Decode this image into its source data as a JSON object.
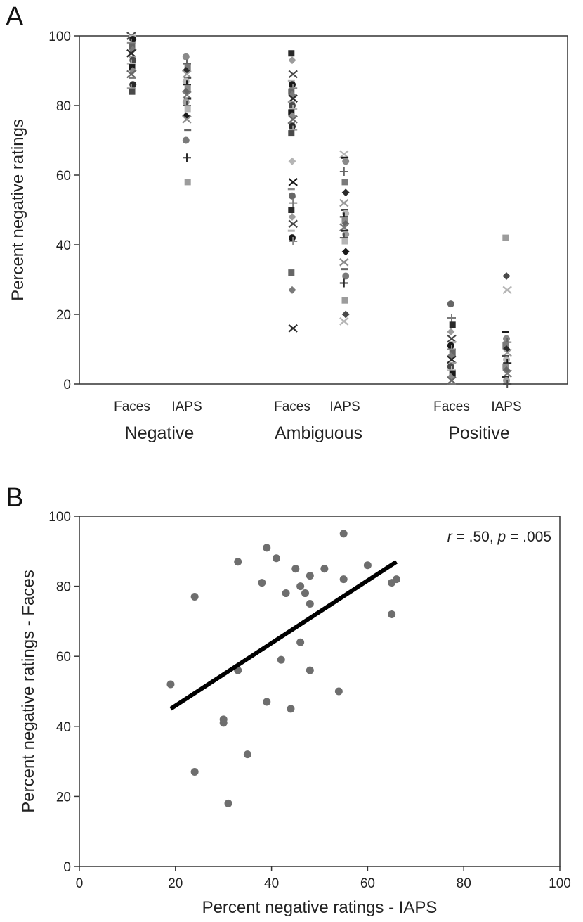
{
  "figure": {
    "panel_a_label": "A",
    "panel_b_label": "B"
  },
  "chart_data": [
    {
      "type": "scatter",
      "panel": "A",
      "title": "",
      "xlabel": "",
      "ylabel": "Percent negative ratings",
      "ylim": [
        0,
        100
      ],
      "yticks": [
        "0",
        "20",
        "40",
        "60",
        "80",
        "100"
      ],
      "grid": false,
      "groups": [
        {
          "label": "Negative",
          "conditions": [
            "Faces",
            "IAPS"
          ]
        },
        {
          "label": "Ambiguous",
          "conditions": [
            "Faces",
            "IAPS"
          ]
        },
        {
          "label": "Positive",
          "conditions": [
            "Faces",
            "IAPS"
          ]
        }
      ],
      "columns": [
        {
          "group": "Negative",
          "condition": "Faces",
          "values": [
            100,
            100,
            99,
            98,
            97,
            96,
            95,
            94,
            93,
            92,
            91,
            90,
            89,
            88,
            86,
            85,
            84
          ]
        },
        {
          "group": "Negative",
          "condition": "IAPS",
          "values": [
            94,
            92,
            91,
            90,
            89,
            88,
            87,
            86,
            85,
            84,
            83,
            82,
            81,
            80,
            79,
            77,
            76,
            73,
            70,
            65,
            58
          ]
        },
        {
          "group": "Ambiguous",
          "condition": "Faces",
          "values": [
            95,
            93,
            89,
            87,
            86,
            85,
            84,
            83,
            82,
            81,
            80,
            79,
            78,
            77,
            76,
            75,
            74,
            73,
            72,
            64,
            58,
            56,
            54,
            52,
            50,
            48,
            46,
            44,
            42,
            41,
            32,
            27,
            16
          ]
        },
        {
          "group": "Ambiguous",
          "condition": "IAPS",
          "values": [
            66,
            65,
            64,
            61,
            58,
            55,
            52,
            50,
            49,
            48,
            47,
            46,
            45,
            44,
            43,
            42,
            41,
            38,
            35,
            33,
            31,
            29,
            24,
            20,
            18
          ]
        },
        {
          "group": "Positive",
          "condition": "Faces",
          "values": [
            23,
            19,
            17,
            15,
            13,
            12,
            11,
            10,
            9,
            8,
            7,
            6,
            5,
            4,
            3,
            2,
            1,
            0
          ]
        },
        {
          "group": "Positive",
          "condition": "IAPS",
          "values": [
            42,
            31,
            27,
            15,
            13,
            12,
            11,
            10,
            9,
            8,
            7,
            6,
            5,
            4,
            3,
            2,
            1,
            0
          ]
        }
      ]
    },
    {
      "type": "scatter",
      "panel": "B",
      "title": "",
      "xlabel": "Percent negative ratings - IAPS",
      "ylabel": "Percent negative ratings - Faces",
      "xlim": [
        0,
        100
      ],
      "ylim": [
        0,
        100
      ],
      "xticks": [
        "0",
        "20",
        "40",
        "60",
        "80",
        "100"
      ],
      "yticks": [
        "0",
        "20",
        "40",
        "60",
        "80",
        "100"
      ],
      "grid": false,
      "annotation": {
        "r_symbol": "r",
        "r_value": " = .50, ",
        "p_symbol": "p",
        "p_value": " = .005"
      },
      "points": [
        {
          "x": 19,
          "y": 52
        },
        {
          "x": 24,
          "y": 77
        },
        {
          "x": 24,
          "y": 27
        },
        {
          "x": 30,
          "y": 41
        },
        {
          "x": 30,
          "y": 42
        },
        {
          "x": 31,
          "y": 18
        },
        {
          "x": 33,
          "y": 87
        },
        {
          "x": 33,
          "y": 56
        },
        {
          "x": 35,
          "y": 32
        },
        {
          "x": 38,
          "y": 81
        },
        {
          "x": 39,
          "y": 91
        },
        {
          "x": 39,
          "y": 47
        },
        {
          "x": 41,
          "y": 88
        },
        {
          "x": 42,
          "y": 59
        },
        {
          "x": 43,
          "y": 78
        },
        {
          "x": 44,
          "y": 45
        },
        {
          "x": 45,
          "y": 85
        },
        {
          "x": 46,
          "y": 80
        },
        {
          "x": 46,
          "y": 64
        },
        {
          "x": 47,
          "y": 78
        },
        {
          "x": 48,
          "y": 56
        },
        {
          "x": 48,
          "y": 83
        },
        {
          "x": 48,
          "y": 75
        },
        {
          "x": 51,
          "y": 85
        },
        {
          "x": 54,
          "y": 50
        },
        {
          "x": 55,
          "y": 95
        },
        {
          "x": 55,
          "y": 82
        },
        {
          "x": 60,
          "y": 86
        },
        {
          "x": 65,
          "y": 81
        },
        {
          "x": 65,
          "y": 72
        },
        {
          "x": 66,
          "y": 82
        }
      ],
      "fit_line": {
        "x": [
          19,
          66
        ],
        "y": [
          45,
          87
        ]
      }
    }
  ]
}
